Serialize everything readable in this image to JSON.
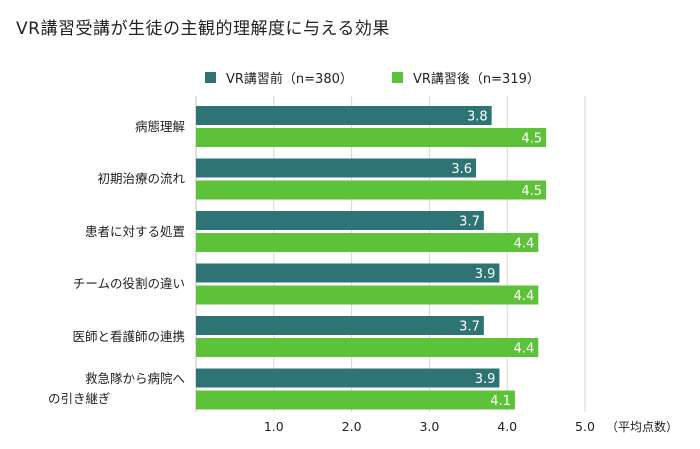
{
  "chart_data": {
    "type": "bar",
    "orientation": "horizontal",
    "title": "VR講習受講が生徒の主観的理解度に与える効果",
    "categories": [
      [
        "病態理解"
      ],
      [
        "初期治療の流れ"
      ],
      [
        "患者に対する処置"
      ],
      [
        "チームの役割の違い"
      ],
      [
        "医師と看護師の連携"
      ],
      [
        "救急隊から病院へ",
        "の引き継ぎ"
      ]
    ],
    "series": [
      {
        "name": "VR講習前（n=380）",
        "color": "#2e7474",
        "values": [
          3.8,
          3.6,
          3.7,
          3.9,
          3.7,
          3.9
        ]
      },
      {
        "name": "VR講習後（n=319）",
        "color": "#5ec13a",
        "values": [
          4.5,
          4.5,
          4.4,
          4.4,
          4.4,
          4.1
        ]
      }
    ],
    "xlim": [
      0,
      5.0
    ],
    "xticks": [
      "1.0",
      "2.0",
      "3.0",
      "4.0",
      "5.0"
    ],
    "xlabel": "（平均点数）",
    "grid": true,
    "legend_position": "top"
  }
}
